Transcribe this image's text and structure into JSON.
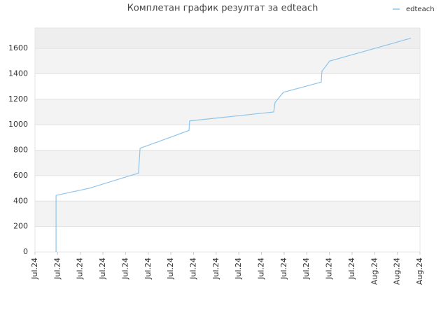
{
  "chart_data": {
    "type": "line",
    "title": "Комплетан график резултат за edteach",
    "x": [
      0.93,
      0.93,
      2.38,
      4.57,
      4.64,
      6.8,
      6.83,
      10.54,
      10.6,
      10.97,
      12.64,
      12.67,
      13.01,
      16.6
    ],
    "series": [
      {
        "name": "edteach",
        "color": "#8ec4ea",
        "values": [
          0,
          445,
          500,
          620,
          815,
          955,
          1030,
          1100,
          1175,
          1255,
          1335,
          1420,
          1500,
          1680
        ]
      }
    ],
    "xlim": [
      0,
      17
    ],
    "xticks": [
      {
        "value": 0,
        "label": "Jul.24"
      },
      {
        "value": 1,
        "label": "Jul.24"
      },
      {
        "value": 2,
        "label": "Jul.24"
      },
      {
        "value": 3,
        "label": "Jul.24"
      },
      {
        "value": 4,
        "label": "Jul.24"
      },
      {
        "value": 5,
        "label": "Jul.24"
      },
      {
        "value": 6,
        "label": "Jul.24"
      },
      {
        "value": 7,
        "label": "Jul.24"
      },
      {
        "value": 8,
        "label": "Jul.24"
      },
      {
        "value": 9,
        "label": "Jul.24"
      },
      {
        "value": 10,
        "label": "Jul.24"
      },
      {
        "value": 11,
        "label": "Jul.24"
      },
      {
        "value": 12,
        "label": "Jul.24"
      },
      {
        "value": 13,
        "label": "Jul.24"
      },
      {
        "value": 14,
        "label": "Jul.24"
      },
      {
        "value": 15,
        "label": "Aug.24"
      },
      {
        "value": 16,
        "label": "Aug.24"
      },
      {
        "value": 17,
        "label": "Aug.24"
      }
    ],
    "ylim": [
      0,
      1760
    ],
    "yticks": [
      0,
      200,
      400,
      600,
      800,
      1000,
      1200,
      1400,
      1600
    ],
    "grid": true,
    "legend": "top-right"
  }
}
